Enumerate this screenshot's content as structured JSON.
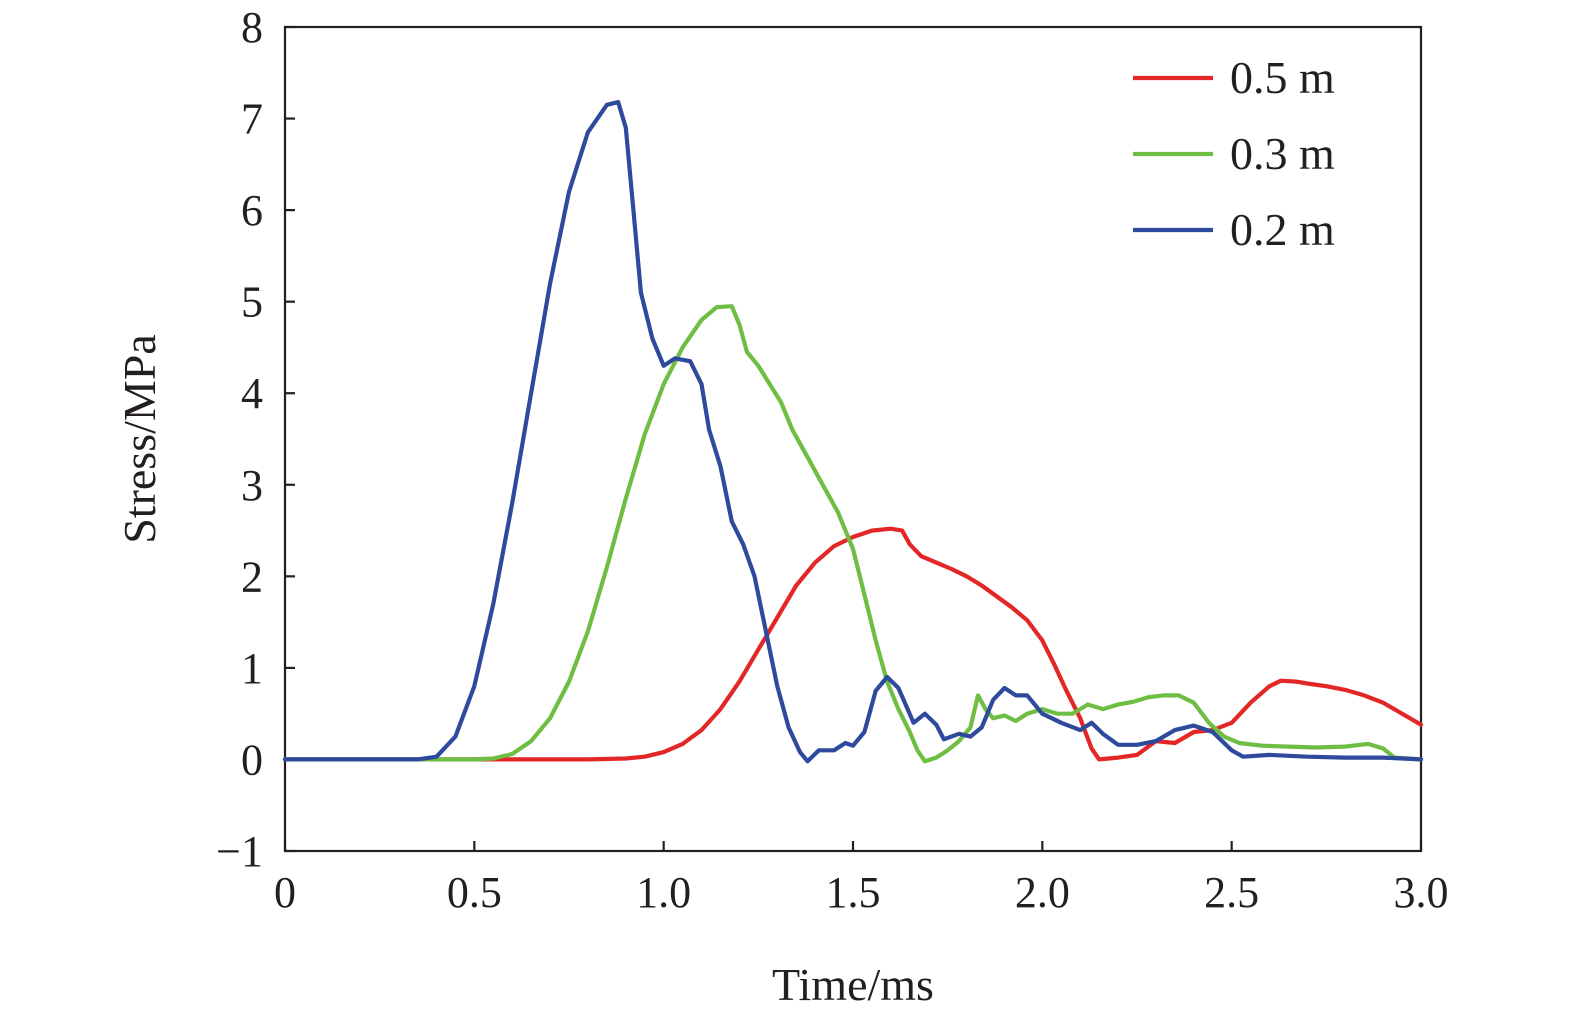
{
  "chart_data": {
    "type": "line",
    "xlabel": "Time/ms",
    "ylabel": "Stress/MPa",
    "xlim": [
      0,
      3.0
    ],
    "ylim": [
      -1,
      8
    ],
    "x_ticks": [
      0,
      0.5,
      1.0,
      1.5,
      2.0,
      2.5,
      3.0
    ],
    "x_tick_labels": [
      "0",
      "0.5",
      "1.0",
      "1.5",
      "2.0",
      "2.5",
      "3.0"
    ],
    "y_ticks": [
      -1,
      0,
      1,
      2,
      3,
      4,
      5,
      6,
      7,
      8
    ],
    "y_tick_labels": [
      "−1",
      "0",
      "1",
      "2",
      "3",
      "4",
      "5",
      "6",
      "7",
      "8"
    ],
    "grid": false,
    "legend_position": "top-right",
    "series": [
      {
        "name": "0.5 m",
        "color": "#e32726",
        "points": [
          [
            0,
            0
          ],
          [
            0.8,
            0
          ],
          [
            0.9,
            0.01
          ],
          [
            0.95,
            0.03
          ],
          [
            1.0,
            0.08
          ],
          [
            1.05,
            0.17
          ],
          [
            1.1,
            0.32
          ],
          [
            1.15,
            0.55
          ],
          [
            1.2,
            0.85
          ],
          [
            1.25,
            1.2
          ],
          [
            1.3,
            1.55
          ],
          [
            1.35,
            1.9
          ],
          [
            1.4,
            2.15
          ],
          [
            1.45,
            2.33
          ],
          [
            1.5,
            2.43
          ],
          [
            1.55,
            2.5
          ],
          [
            1.6,
            2.52
          ],
          [
            1.63,
            2.5
          ],
          [
            1.65,
            2.35
          ],
          [
            1.68,
            2.22
          ],
          [
            1.72,
            2.15
          ],
          [
            1.76,
            2.08
          ],
          [
            1.8,
            2.0
          ],
          [
            1.84,
            1.9
          ],
          [
            1.88,
            1.78
          ],
          [
            1.92,
            1.66
          ],
          [
            1.96,
            1.52
          ],
          [
            2.0,
            1.3
          ],
          [
            2.03,
            1.05
          ],
          [
            2.06,
            0.78
          ],
          [
            2.1,
            0.45
          ],
          [
            2.13,
            0.12
          ],
          [
            2.15,
            0.0
          ],
          [
            2.2,
            0.02
          ],
          [
            2.25,
            0.05
          ],
          [
            2.3,
            0.2
          ],
          [
            2.35,
            0.18
          ],
          [
            2.4,
            0.3
          ],
          [
            2.45,
            0.32
          ],
          [
            2.5,
            0.4
          ],
          [
            2.55,
            0.62
          ],
          [
            2.6,
            0.8
          ],
          [
            2.63,
            0.86
          ],
          [
            2.67,
            0.85
          ],
          [
            2.7,
            0.83
          ],
          [
            2.75,
            0.8
          ],
          [
            2.8,
            0.76
          ],
          [
            2.85,
            0.7
          ],
          [
            2.9,
            0.62
          ],
          [
            2.95,
            0.5
          ],
          [
            3.0,
            0.38
          ]
        ]
      },
      {
        "name": "0.3 m",
        "color": "#6fbe44",
        "points": [
          [
            0,
            0
          ],
          [
            0.5,
            0
          ],
          [
            0.55,
            0.01
          ],
          [
            0.6,
            0.06
          ],
          [
            0.65,
            0.2
          ],
          [
            0.7,
            0.45
          ],
          [
            0.75,
            0.85
          ],
          [
            0.8,
            1.4
          ],
          [
            0.85,
            2.1
          ],
          [
            0.9,
            2.85
          ],
          [
            0.95,
            3.55
          ],
          [
            1.0,
            4.1
          ],
          [
            1.05,
            4.5
          ],
          [
            1.1,
            4.8
          ],
          [
            1.14,
            4.94
          ],
          [
            1.18,
            4.95
          ],
          [
            1.2,
            4.75
          ],
          [
            1.22,
            4.45
          ],
          [
            1.25,
            4.3
          ],
          [
            1.28,
            4.1
          ],
          [
            1.31,
            3.9
          ],
          [
            1.34,
            3.6
          ],
          [
            1.38,
            3.3
          ],
          [
            1.42,
            3.0
          ],
          [
            1.46,
            2.7
          ],
          [
            1.5,
            2.3
          ],
          [
            1.53,
            1.8
          ],
          [
            1.56,
            1.3
          ],
          [
            1.59,
            0.85
          ],
          [
            1.62,
            0.55
          ],
          [
            1.65,
            0.3
          ],
          [
            1.67,
            0.1
          ],
          [
            1.69,
            -0.02
          ],
          [
            1.72,
            0.02
          ],
          [
            1.75,
            0.1
          ],
          [
            1.78,
            0.2
          ],
          [
            1.81,
            0.35
          ],
          [
            1.83,
            0.7
          ],
          [
            1.85,
            0.55
          ],
          [
            1.87,
            0.45
          ],
          [
            1.9,
            0.48
          ],
          [
            1.93,
            0.42
          ],
          [
            1.96,
            0.5
          ],
          [
            2.0,
            0.55
          ],
          [
            2.04,
            0.5
          ],
          [
            2.08,
            0.5
          ],
          [
            2.12,
            0.6
          ],
          [
            2.16,
            0.55
          ],
          [
            2.2,
            0.6
          ],
          [
            2.24,
            0.63
          ],
          [
            2.28,
            0.68
          ],
          [
            2.32,
            0.7
          ],
          [
            2.36,
            0.7
          ],
          [
            2.4,
            0.62
          ],
          [
            2.44,
            0.4
          ],
          [
            2.48,
            0.25
          ],
          [
            2.52,
            0.18
          ],
          [
            2.58,
            0.15
          ],
          [
            2.65,
            0.14
          ],
          [
            2.72,
            0.13
          ],
          [
            2.8,
            0.14
          ],
          [
            2.86,
            0.17
          ],
          [
            2.9,
            0.12
          ],
          [
            2.93,
            0.02
          ],
          [
            3.0,
            0.0
          ]
        ]
      },
      {
        "name": "0.2 m",
        "color": "#2e4a9c",
        "points": [
          [
            0,
            0
          ],
          [
            0.35,
            0
          ],
          [
            0.4,
            0.03
          ],
          [
            0.45,
            0.25
          ],
          [
            0.5,
            0.8
          ],
          [
            0.55,
            1.7
          ],
          [
            0.6,
            2.8
          ],
          [
            0.65,
            4.0
          ],
          [
            0.7,
            5.2
          ],
          [
            0.75,
            6.2
          ],
          [
            0.8,
            6.85
          ],
          [
            0.85,
            7.15
          ],
          [
            0.88,
            7.18
          ],
          [
            0.9,
            6.9
          ],
          [
            0.92,
            6.0
          ],
          [
            0.94,
            5.1
          ],
          [
            0.97,
            4.6
          ],
          [
            1.0,
            4.3
          ],
          [
            1.03,
            4.38
          ],
          [
            1.07,
            4.35
          ],
          [
            1.1,
            4.1
          ],
          [
            1.12,
            3.6
          ],
          [
            1.15,
            3.2
          ],
          [
            1.18,
            2.6
          ],
          [
            1.21,
            2.35
          ],
          [
            1.24,
            2.0
          ],
          [
            1.27,
            1.4
          ],
          [
            1.3,
            0.8
          ],
          [
            1.33,
            0.35
          ],
          [
            1.36,
            0.08
          ],
          [
            1.38,
            -0.02
          ],
          [
            1.41,
            0.1
          ],
          [
            1.45,
            0.1
          ],
          [
            1.48,
            0.18
          ],
          [
            1.5,
            0.15
          ],
          [
            1.53,
            0.3
          ],
          [
            1.56,
            0.75
          ],
          [
            1.59,
            0.9
          ],
          [
            1.62,
            0.78
          ],
          [
            1.66,
            0.4
          ],
          [
            1.69,
            0.5
          ],
          [
            1.72,
            0.38
          ],
          [
            1.74,
            0.22
          ],
          [
            1.78,
            0.28
          ],
          [
            1.81,
            0.25
          ],
          [
            1.84,
            0.35
          ],
          [
            1.87,
            0.65
          ],
          [
            1.9,
            0.78
          ],
          [
            1.93,
            0.7
          ],
          [
            1.96,
            0.7
          ],
          [
            2.0,
            0.5
          ],
          [
            2.05,
            0.4
          ],
          [
            2.1,
            0.32
          ],
          [
            2.13,
            0.4
          ],
          [
            2.16,
            0.28
          ],
          [
            2.2,
            0.16
          ],
          [
            2.25,
            0.16
          ],
          [
            2.3,
            0.2
          ],
          [
            2.35,
            0.32
          ],
          [
            2.4,
            0.37
          ],
          [
            2.45,
            0.3
          ],
          [
            2.5,
            0.1
          ],
          [
            2.53,
            0.03
          ],
          [
            2.6,
            0.05
          ],
          [
            2.7,
            0.03
          ],
          [
            2.8,
            0.02
          ],
          [
            2.9,
            0.02
          ],
          [
            3.0,
            0.0
          ]
        ]
      }
    ]
  }
}
